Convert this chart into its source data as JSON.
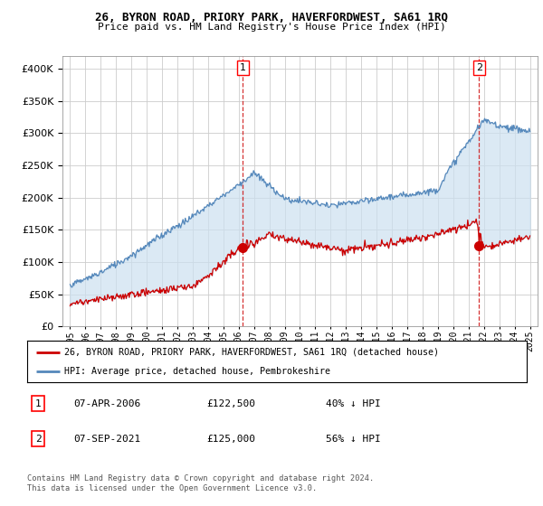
{
  "title": "26, BYRON ROAD, PRIORY PARK, HAVERFORDWEST, SA61 1RQ",
  "subtitle": "Price paid vs. HM Land Registry's House Price Index (HPI)",
  "legend_line1": "26, BYRON ROAD, PRIORY PARK, HAVERFORDWEST, SA61 1RQ (detached house)",
  "legend_line2": "HPI: Average price, detached house, Pembrokeshire",
  "table_row1": [
    "1",
    "07-APR-2006",
    "£122,500",
    "40% ↓ HPI"
  ],
  "table_row2": [
    "2",
    "07-SEP-2021",
    "£125,000",
    "56% ↓ HPI"
  ],
  "footnote": "Contains HM Land Registry data © Crown copyright and database right 2024.\nThis data is licensed under the Open Government Licence v3.0.",
  "sale1_year": 2006.27,
  "sale1_price": 122500,
  "sale2_year": 2021.68,
  "sale2_price": 125000,
  "red_color": "#cc0000",
  "blue_color": "#5588bb",
  "fill_color": "#cce0f0",
  "background_color": "#ffffff",
  "grid_color": "#cccccc",
  "ylim": [
    0,
    420000
  ],
  "yticks": [
    0,
    50000,
    100000,
    150000,
    200000,
    250000,
    300000,
    350000,
    400000
  ],
  "xlim_start": 1994.5,
  "xlim_end": 2025.5
}
